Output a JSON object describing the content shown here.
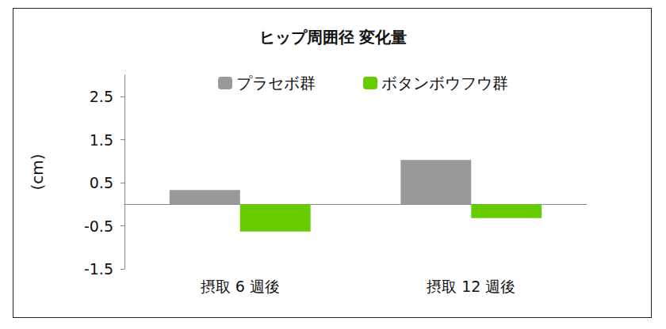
{
  "chart_data": {
    "type": "bar",
    "title": "ヒップ周囲径 変化量",
    "y_label": "(cm)",
    "categories": [
      "摂取 6 週後",
      "摂取 12 週後"
    ],
    "series": [
      {
        "name": "プラセボ群",
        "color": "#999999",
        "values": [
          0.33,
          1.03
        ]
      },
      {
        "name": "ボタンボウフウ群",
        "color": "#66cc00",
        "values": [
          -0.63,
          -0.32
        ]
      }
    ],
    "ylim": [
      -1.5,
      3
    ],
    "yticks": [
      2.5,
      1.5,
      0.5,
      -0.5,
      -1.5
    ],
    "grid": false,
    "legend": "top"
  }
}
